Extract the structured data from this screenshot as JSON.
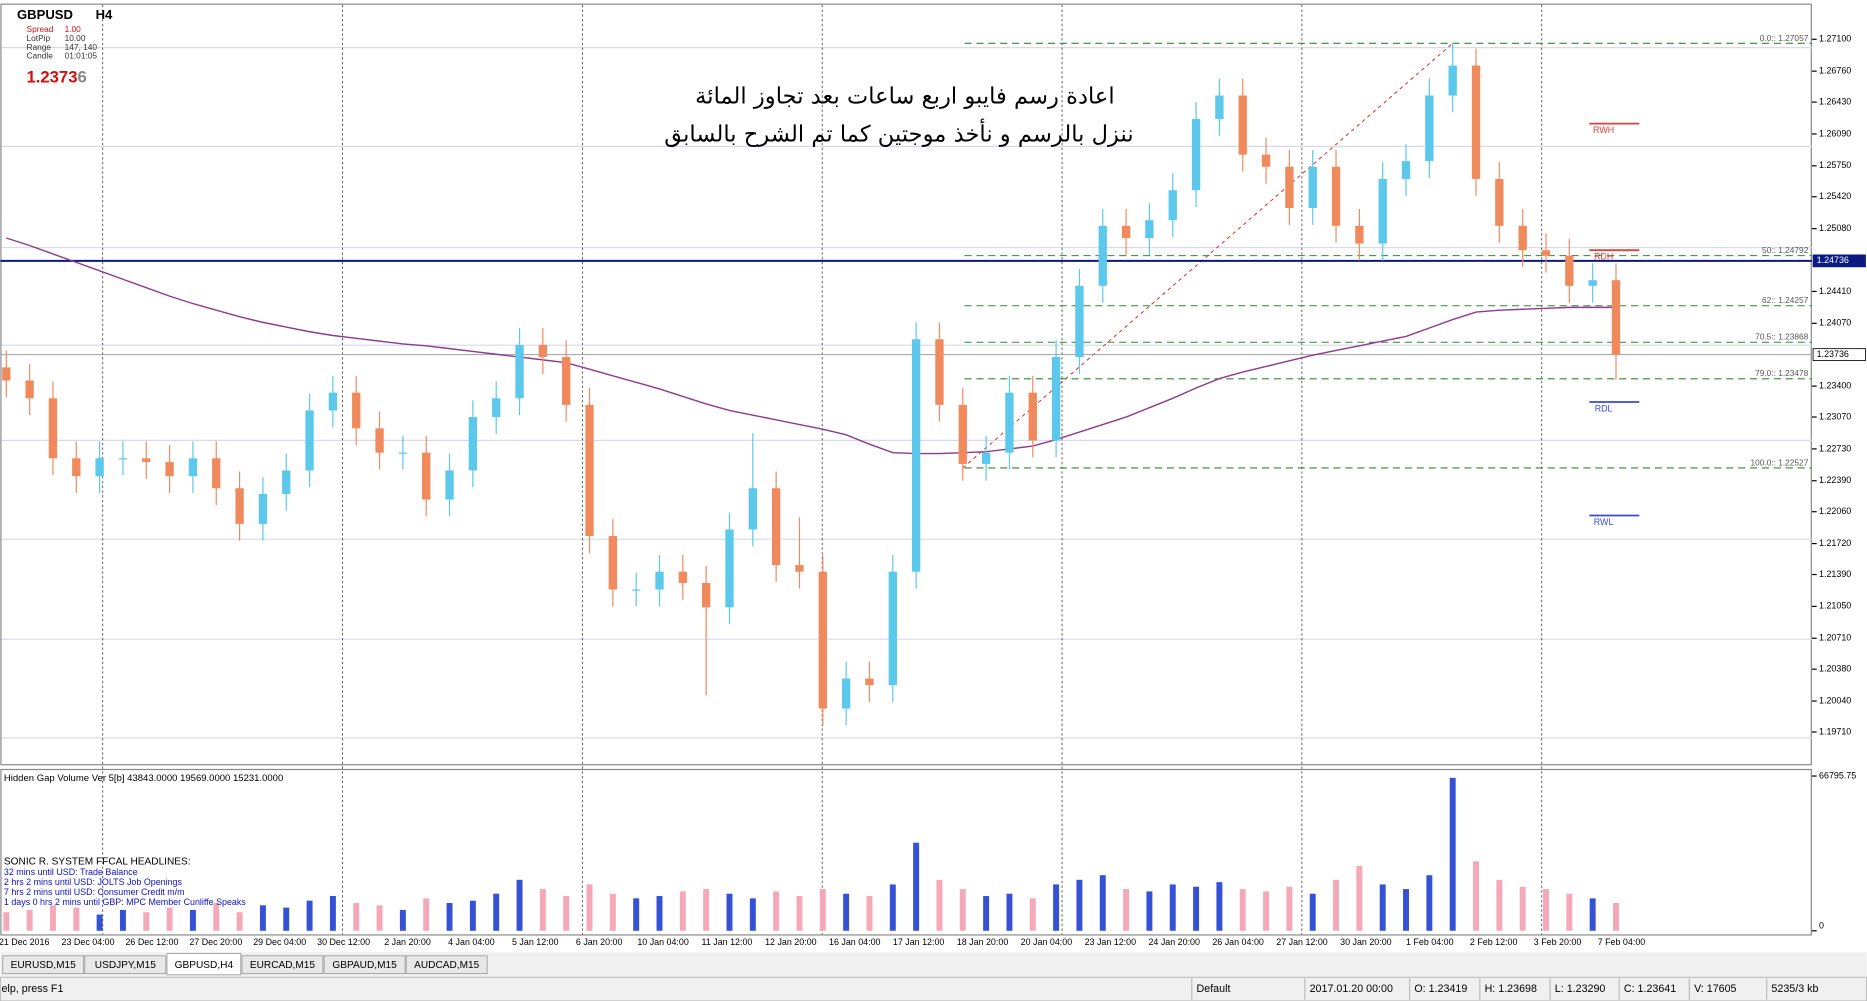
{
  "header": {
    "symbol": "GBPUSD",
    "timeframe": "H4",
    "info": [
      [
        "Spread",
        "1.00"
      ],
      [
        "LotPip",
        "10.00"
      ],
      [
        "Range",
        "147, 140"
      ],
      [
        "Candle",
        "01:01:05"
      ]
    ],
    "price_main": "1.2373",
    "price_last": "6"
  },
  "chart_data": {
    "type": "candlestick",
    "annotations": [
      "اعادة رسم فايبو اربع ساعات بعد تجاوز المائة",
      "ننزل بالرسم و نأخذ موجتين كما تم الشرح بالسابق"
    ],
    "up_color": "#5bc8ec",
    "down_color": "#f08a5d",
    "open": [
      1.236,
      1.2346,
      1.2327,
      1.2263,
      1.2244,
      1.2263,
      1.2263,
      1.2259,
      1.2244,
      1.2263,
      1.2231,
      1.2193,
      1.2225,
      1.225,
      1.2314,
      1.2333,
      1.2295,
      1.2269,
      1.2269,
      1.2219,
      1.225,
      1.2307,
      1.2327,
      1.2384,
      1.2371,
      1.232,
      1.218,
      1.2123,
      1.2123,
      1.2142,
      1.213,
      1.2104,
      1.2187,
      1.2231,
      1.2149,
      1.2142,
      1.1996,
      1.2028,
      1.2021,
      1.2142,
      1.239,
      1.232,
      1.2257,
      1.2269,
      1.2333,
      1.2282,
      1.2371,
      1.2447,
      1.2511,
      1.2498,
      1.2517,
      1.2549,
      1.2625,
      1.265,
      1.2587,
      1.2574,
      1.253,
      1.2574,
      1.2511,
      1.2492,
      1.2561,
      1.258,
      1.265,
      1.2682,
      1.2561,
      1.2511,
      1.2485,
      1.2479,
      1.2447,
      1.2453
    ],
    "high": [
      1.2378,
      1.2364,
      1.2345,
      1.2281,
      1.2281,
      1.2281,
      1.2281,
      1.2277,
      1.2281,
      1.2281,
      1.2249,
      1.2243,
      1.2268,
      1.2332,
      1.2351,
      1.2351,
      1.2313,
      1.2287,
      1.2287,
      1.2268,
      1.2325,
      1.2345,
      1.2402,
      1.2402,
      1.2389,
      1.2338,
      1.2198,
      1.2141,
      1.216,
      1.216,
      1.2148,
      1.2205,
      1.229,
      1.2249,
      1.22,
      1.216,
      1.2046,
      1.2046,
      1.216,
      1.2408,
      1.2408,
      1.2338,
      1.2287,
      1.2351,
      1.2351,
      1.2389,
      1.2465,
      1.2529,
      1.2529,
      1.2535,
      1.2567,
      1.2643,
      1.2668,
      1.2668,
      1.2605,
      1.2592,
      1.2592,
      1.2592,
      1.2529,
      1.2579,
      1.2598,
      1.2668,
      1.2706,
      1.27,
      1.2579,
      1.2529,
      1.2503,
      1.2497,
      1.2471,
      1.2471
    ],
    "low": [
      1.2328,
      1.2309,
      1.2245,
      1.2226,
      1.2226,
      1.2245,
      1.2241,
      1.2226,
      1.2226,
      1.2213,
      1.2175,
      1.2175,
      1.2207,
      1.2232,
      1.2296,
      1.2277,
      1.2251,
      1.2251,
      1.2201,
      1.2201,
      1.2232,
      1.2289,
      1.2309,
      1.2353,
      1.2302,
      1.2162,
      1.2105,
      1.2105,
      1.2105,
      1.2112,
      1.201,
      1.2086,
      1.2169,
      1.2131,
      1.2124,
      1.1978,
      1.1978,
      1.2003,
      1.2003,
      1.2124,
      1.2302,
      1.2239,
      1.2239,
      1.2251,
      1.2264,
      1.2264,
      1.2353,
      1.2429,
      1.248,
      1.248,
      1.2499,
      1.2531,
      1.2607,
      1.2569,
      1.2556,
      1.2512,
      1.2512,
      1.2493,
      1.2474,
      1.2474,
      1.2543,
      1.2562,
      1.2632,
      1.2543,
      1.2493,
      1.2467,
      1.2461,
      1.2429,
      1.2429,
      1.2347
    ],
    "close": [
      1.2346,
      1.2327,
      1.2263,
      1.2244,
      1.2263,
      1.2263,
      1.2259,
      1.2244,
      1.2263,
      1.2231,
      1.2193,
      1.2225,
      1.225,
      1.2314,
      1.2333,
      1.2295,
      1.2269,
      1.2269,
      1.2219,
      1.225,
      1.2307,
      1.2327,
      1.2384,
      1.2371,
      1.232,
      1.218,
      1.2123,
      1.2123,
      1.2142,
      1.213,
      1.2104,
      1.2187,
      1.2231,
      1.2149,
      1.2142,
      1.1996,
      1.2028,
      1.2021,
      1.2142,
      1.239,
      1.232,
      1.2257,
      1.2269,
      1.2333,
      1.2282,
      1.2371,
      1.2447,
      1.2511,
      1.2498,
      1.2517,
      1.2549,
      1.2625,
      1.265,
      1.2587,
      1.2574,
      1.253,
      1.2574,
      1.2511,
      1.2492,
      1.2561,
      1.258,
      1.265,
      1.2682,
      1.2561,
      1.2511,
      1.2485,
      1.2479,
      1.2447,
      1.2453,
      1.2374
    ],
    "ma": {
      "color": "#8e3a8e",
      "values": [
        1.2498,
        1.249,
        1.2481,
        1.2472,
        1.2463,
        1.2454,
        1.2445,
        1.2436,
        1.2428,
        1.2421,
        1.2414,
        1.2408,
        1.2403,
        1.2398,
        1.2394,
        1.2391,
        1.2388,
        1.2385,
        1.2383,
        1.238,
        1.2377,
        1.2374,
        1.2371,
        1.2368,
        1.2365,
        1.2358,
        1.2351,
        1.2344,
        1.2337,
        1.2329,
        1.2321,
        1.2314,
        1.2309,
        1.2304,
        1.2299,
        1.2294,
        1.2288,
        1.2278,
        1.2269,
        1.2268,
        1.2268,
        1.2269,
        1.227,
        1.2273,
        1.2276,
        1.2283,
        1.2291,
        1.2299,
        1.2307,
        1.2317,
        1.2327,
        1.2338,
        1.2348,
        1.2355,
        1.2361,
        1.2367,
        1.2373,
        1.2378,
        1.2383,
        1.2388,
        1.2393,
        1.2402,
        1.2411,
        1.2419,
        1.2421,
        1.2422,
        1.2423,
        1.2424,
        1.2424,
        1.2424
      ]
    },
    "ylim": [
      1.19367,
      1.27481
    ],
    "yticks": [
      {
        "value": 1.271,
        "label": "1.27100"
      },
      {
        "value": 1.2676,
        "label": "1.26760"
      },
      {
        "value": 1.2643,
        "label": "1.26430"
      },
      {
        "value": 1.2609,
        "label": "1.26090"
      },
      {
        "value": 1.2575,
        "label": "1.25750"
      },
      {
        "value": 1.2542,
        "label": "1.25420"
      },
      {
        "value": 1.2508,
        "label": "1.25080"
      },
      {
        "value": 1.2441,
        "label": "1.24410"
      },
      {
        "value": 1.2407,
        "label": "1.24070"
      },
      {
        "value": 1.234,
        "label": "1.23400"
      },
      {
        "value": 1.2307,
        "label": "1.23070"
      },
      {
        "value": 1.2273,
        "label": "1.22730"
      },
      {
        "value": 1.2239,
        "label": "1.22390"
      },
      {
        "value": 1.2206,
        "label": "1.22060"
      },
      {
        "value": 1.2172,
        "label": "1.21720"
      },
      {
        "value": 1.2139,
        "label": "1.21390"
      },
      {
        "value": 1.2105,
        "label": "1.21050"
      },
      {
        "value": 1.2071,
        "label": "1.20710"
      },
      {
        "value": 1.2038,
        "label": "1.20380"
      },
      {
        "value": 1.2004,
        "label": "1.20040"
      },
      {
        "value": 1.1971,
        "label": "1.19710"
      }
    ],
    "xtick_labels": [
      "21 Dec 2016",
      "23 Dec 04:00",
      "26 Dec 12:00",
      "27 Dec 20:00",
      "29 Dec 04:00",
      "30 Dec 12:00",
      "2 Jan 20:00",
      "4 Jan 04:00",
      "5 Jan 12:00",
      "6 Jan 20:00",
      "10 Jan 04:00",
      "11 Jan 12:00",
      "12 Jan 20:00",
      "16 Jan 04:00",
      "17 Jan 12:00",
      "18 Jan 20:00",
      "20 Jan 04:00",
      "23 Jan 12:00",
      "24 Jan 20:00",
      "26 Jan 04:00",
      "27 Jan 12:00",
      "30 Jan 20:00",
      "1 Feb 04:00",
      "2 Feb 12:00",
      "3 Feb 20:00",
      "7 Feb 04:00"
    ],
    "fib_color": "#2e8b2e",
    "fib_levels": [
      {
        "value": 1.27057,
        "label": "0.0:: 1.27057"
      },
      {
        "value": 1.24792,
        "label": "50:: 1.24792"
      },
      {
        "value": 1.24257,
        "label": "62:: 1.24257"
      },
      {
        "value": 1.23868,
        "label": "70.5:: 1.23868"
      },
      {
        "value": 1.23478,
        "label": "79.0:: 1.23478"
      },
      {
        "value": 1.22527,
        "label": "100.0:: 1.22527"
      }
    ],
    "pivots": [
      {
        "name": "RWH",
        "value": 1.262,
        "color": "#e0403a"
      },
      {
        "name": "RDH",
        "value": 1.2485,
        "color": "#e0403a"
      },
      {
        "name": "RDL",
        "value": 1.2323,
        "color": "#3a4ad8"
      },
      {
        "name": "RWL",
        "value": 1.2202,
        "color": "#3a4ad8"
      }
    ],
    "price_lines": [
      {
        "value": 1.24736,
        "label": "1.24736",
        "color": "#0a1a80"
      },
      {
        "value": 1.23736,
        "label": "1.23736",
        "color": "#a0a0a0"
      }
    ],
    "volume": {
      "title": "Hidden Gap Volume Ver 5[b] 43843.0000 19569.0000 15231.0000",
      "up_color": "#3552d6",
      "down_color": "#f5a8b8",
      "values": [
        8000,
        9000,
        11000,
        10000,
        7000,
        9000,
        8000,
        10000,
        9000,
        12000,
        8000,
        11000,
        10000,
        13000,
        15000,
        12000,
        11000,
        9000,
        14000,
        12000,
        13000,
        16000,
        22000,
        18000,
        15000,
        20000,
        16000,
        14000,
        15000,
        17000,
        18000,
        16000,
        14000,
        17000,
        15000,
        18000,
        16000,
        15000,
        20000,
        38000,
        22000,
        18000,
        15000,
        16000,
        14000,
        20000,
        22000,
        24000,
        18000,
        17000,
        20000,
        19000,
        21000,
        18000,
        17000,
        19000,
        16000,
        22000,
        28000,
        20000,
        18000,
        24000,
        66000,
        30000,
        22000,
        19000,
        18000,
        16000,
        14000,
        12000
      ],
      "ylim": [
        0,
        66795.75
      ],
      "yticks": [
        0,
        66795.75
      ]
    }
  },
  "headlines": {
    "title": "SONIC R. SYSTEM  FFCAL HEADLINES:",
    "items": [
      "32 mins until USD: Trade Balance",
      "2 hrs 2 mins until USD: JOLTS Job Openings",
      "7 hrs 2 mins until USD: Consumer Credit m/m",
      "1 days 0 hrs 2 mins until GBP: MPC Member Cunliffe Speaks"
    ]
  },
  "tabs": [
    "EURUSD,M15",
    "USDJPY,M15",
    "GBPUSD,H4",
    "EURCAD,M15",
    "GBPAUD,M15",
    "AUDCAD,M15"
  ],
  "status": [
    "elp, press F1",
    "Default",
    "2017.01.20 00:00",
    "O: 1.23419",
    "H: 1.23698",
    "L: 1.23290",
    "C: 1.23641",
    "V: 17605",
    "5235/3 kb"
  ]
}
